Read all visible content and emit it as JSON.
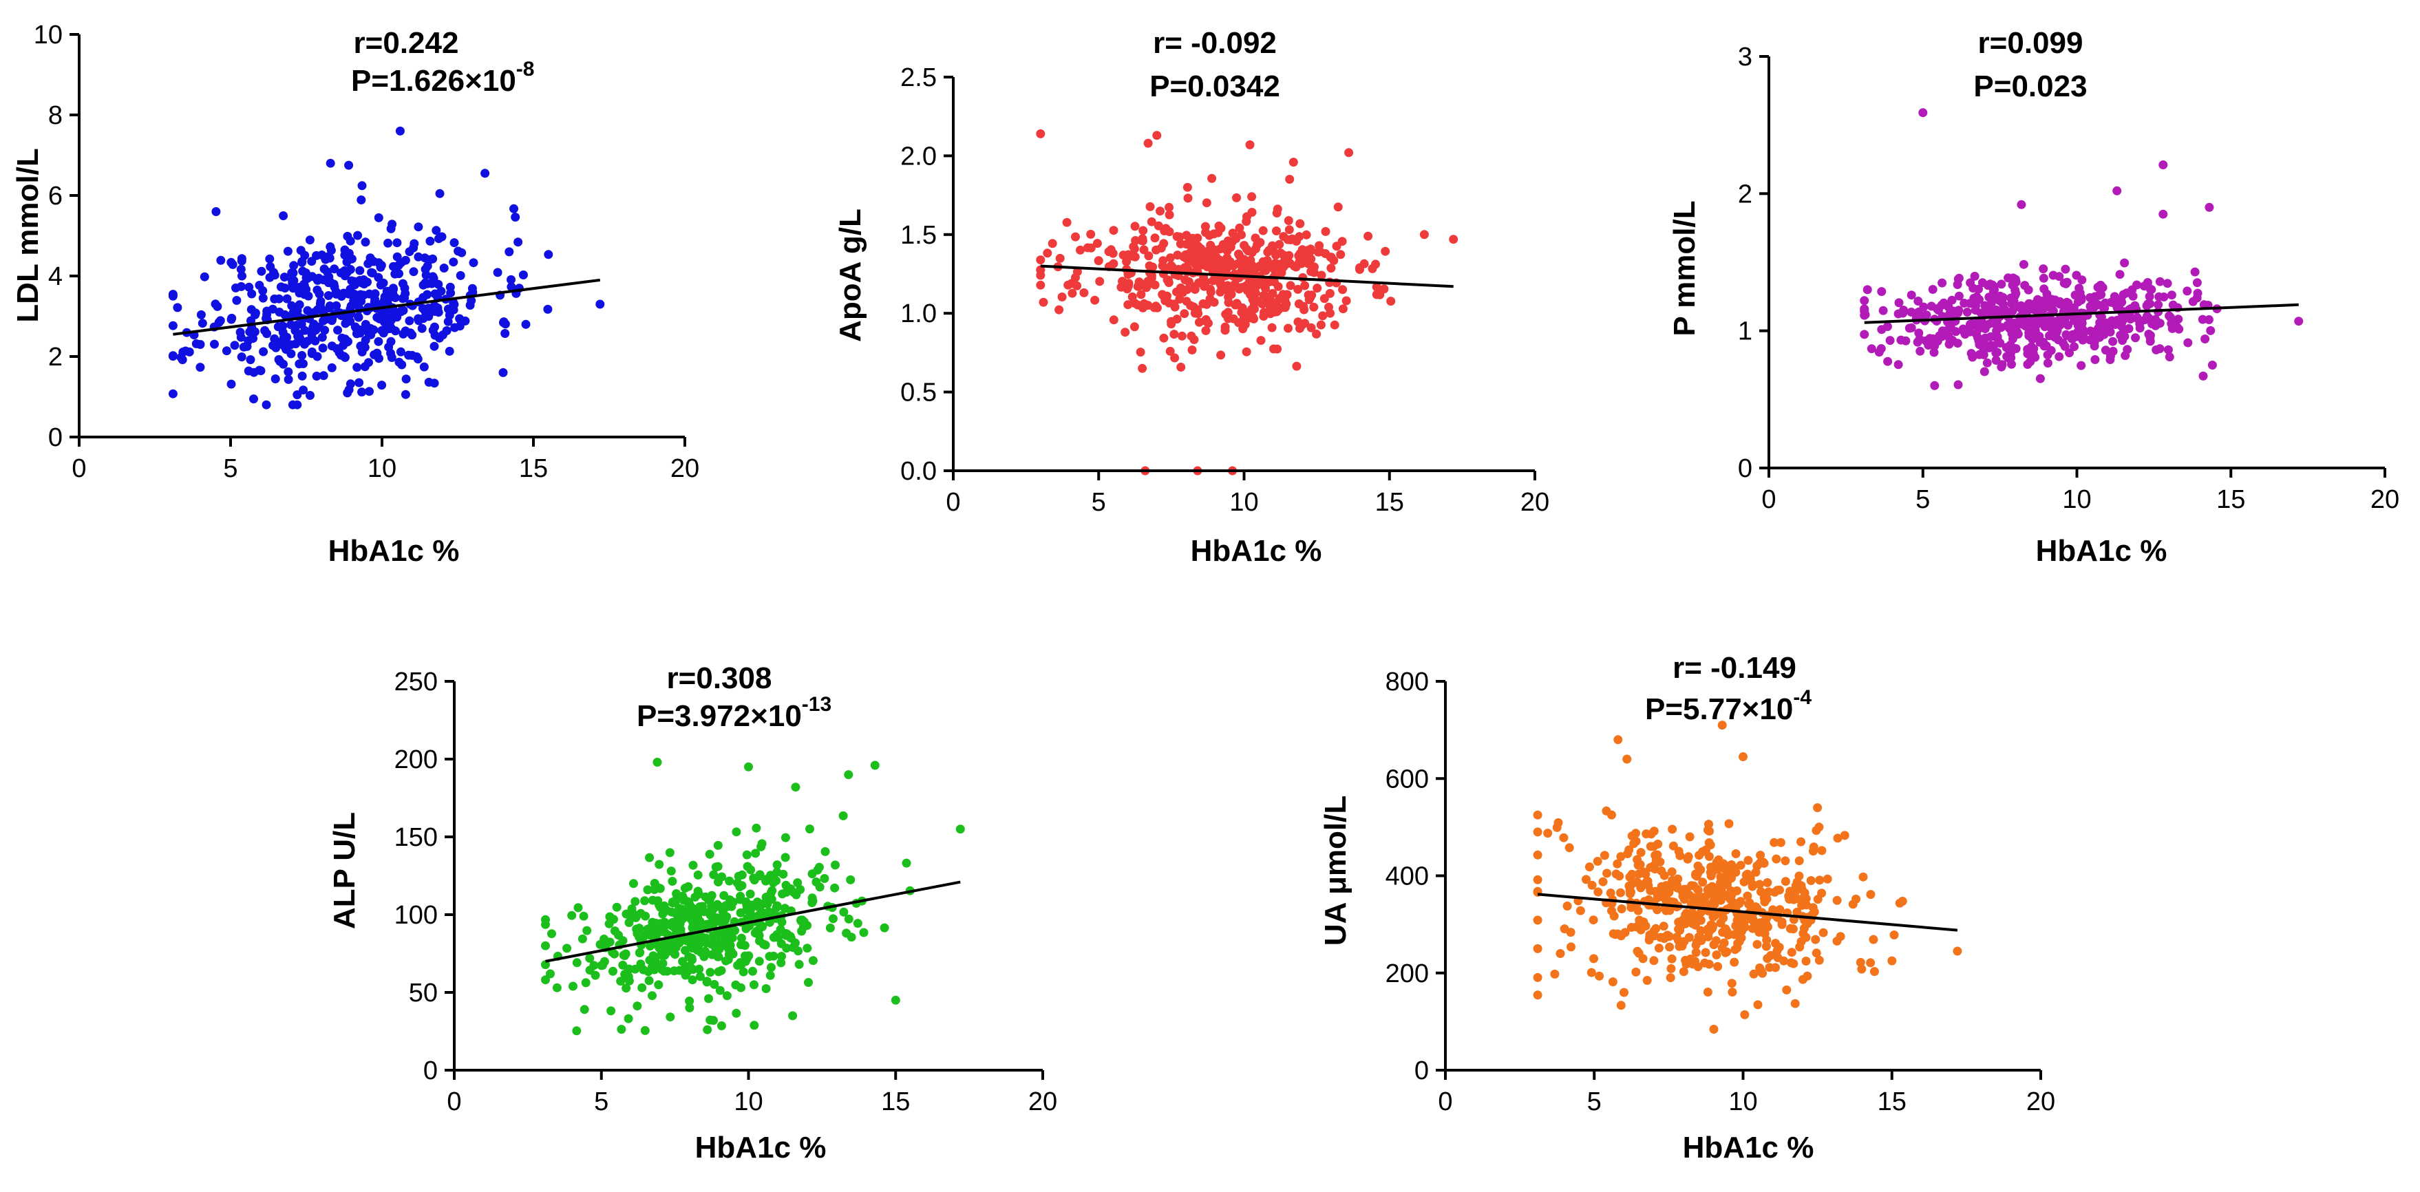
{
  "chart_data": [
    {
      "id": "ldl",
      "type": "scatter",
      "color": "#1010e0",
      "xlabel": "HbA1c %",
      "ylabel": "LDL mmol/L",
      "xlim": [
        0,
        20
      ],
      "ylim": [
        0,
        10
      ],
      "xticks": [
        "0",
        "5",
        "10",
        "15",
        "20"
      ],
      "yticks": [
        "0",
        "2",
        "4",
        "6",
        "8",
        "10"
      ],
      "stat_r": "r=0.242",
      "stat_p_base": "P=1.626×10",
      "stat_p_exp": "-8",
      "trend": {
        "x": [
          3.1,
          17.2
        ],
        "y": [
          2.55,
          3.9
        ]
      },
      "n_points": 520,
      "x_range": [
        3.1,
        17.2
      ],
      "center": {
        "x": 8.8,
        "y": 3.25
      },
      "spread": {
        "x": 2.4,
        "y": 0.95
      },
      "slope": 0.096,
      "seed": 11,
      "extra_points": [
        [
          10.6,
          7.6
        ],
        [
          8.3,
          6.8
        ],
        [
          8.9,
          6.75
        ],
        [
          13.4,
          6.55
        ],
        [
          14.2,
          4.6
        ],
        [
          17.2,
          3.3
        ],
        [
          3.1,
          3.5
        ],
        [
          4.0,
          2.3
        ],
        [
          14.0,
          1.6
        ],
        [
          7.2,
          1.05
        ]
      ]
    },
    {
      "id": "apoa",
      "type": "scatter",
      "color": "#ee3a3a",
      "xlabel": "HbA1c %",
      "ylabel": "ApoA g/L",
      "xlim": [
        0,
        20
      ],
      "ylim": [
        0,
        2.5
      ],
      "xticks": [
        "0",
        "5",
        "10",
        "15",
        "20"
      ],
      "yticks": [
        "0.0",
        "0.5",
        "1.0",
        "1.5",
        "2.0",
        "2.5"
      ],
      "stat_r": "r= -0.092",
      "stat_p_base": "P=0.0342",
      "stat_p_exp": "",
      "trend": {
        "x": [
          3.0,
          17.2
        ],
        "y": [
          1.3,
          1.17
        ]
      },
      "n_points": 520,
      "x_range": [
        3.0,
        17.2
      ],
      "center": {
        "x": 9.0,
        "y": 1.24
      },
      "spread": {
        "x": 2.4,
        "y": 0.2
      },
      "slope": -0.009,
      "seed": 23,
      "extra_points": [
        [
          3.0,
          2.14
        ],
        [
          6.7,
          2.08
        ],
        [
          7.0,
          2.13
        ],
        [
          10.2,
          2.07
        ],
        [
          13.6,
          2.02
        ],
        [
          11.7,
          1.96
        ],
        [
          6.5,
          0.65
        ],
        [
          6.6,
          0.0
        ],
        [
          8.4,
          0.0
        ],
        [
          9.6,
          0.0
        ],
        [
          3.1,
          1.07
        ],
        [
          17.2,
          1.47
        ],
        [
          16.2,
          1.5
        ]
      ]
    },
    {
      "id": "p",
      "type": "scatter",
      "color": "#b21bb8",
      "xlabel": "HbA1c %",
      "ylabel": "P mmol/L",
      "xlim": [
        0,
        20
      ],
      "ylim": [
        0,
        3
      ],
      "xticks": [
        "0",
        "5",
        "10",
        "15",
        "20"
      ],
      "yticks": [
        "0",
        "1",
        "2",
        "3"
      ],
      "stat_r": "r=0.099",
      "stat_p_base": "P=0.023",
      "stat_p_exp": "",
      "trend": {
        "x": [
          3.1,
          17.2
        ],
        "y": [
          1.06,
          1.19
        ]
      },
      "n_points": 520,
      "x_range": [
        3.1,
        17.2
      ],
      "center": {
        "x": 8.8,
        "y": 1.1
      },
      "spread": {
        "x": 2.4,
        "y": 0.16
      },
      "slope": 0.009,
      "seed": 37,
      "extra_points": [
        [
          5.0,
          2.59
        ],
        [
          12.8,
          2.21
        ],
        [
          11.3,
          2.02
        ],
        [
          14.3,
          1.9
        ],
        [
          12.8,
          1.85
        ],
        [
          8.2,
          1.92
        ],
        [
          3.2,
          1.3
        ],
        [
          3.1,
          1.22
        ],
        [
          17.2,
          1.07
        ],
        [
          14.1,
          0.67
        ],
        [
          14.4,
          0.75
        ]
      ]
    },
    {
      "id": "alp",
      "type": "scatter",
      "color": "#1bbe1b",
      "xlabel": "HbA1c %",
      "ylabel": "ALP U/L",
      "xlim": [
        0,
        20
      ],
      "ylim": [
        0,
        250
      ],
      "xticks": [
        "0",
        "5",
        "10",
        "15",
        "20"
      ],
      "yticks": [
        "0",
        "50",
        "100",
        "150",
        "200",
        "250"
      ],
      "stat_r": "r=0.308",
      "stat_p_base": "P=3.972×10",
      "stat_p_exp": "-13",
      "trend": {
        "x": [
          3.1,
          17.2
        ],
        "y": [
          70,
          121
        ]
      },
      "n_points": 520,
      "x_range": [
        3.1,
        17.2
      ],
      "center": {
        "x": 8.8,
        "y": 90
      },
      "spread": {
        "x": 2.4,
        "y": 22
      },
      "slope": 3.6,
      "seed": 53,
      "extra_points": [
        [
          6.9,
          198
        ],
        [
          10.0,
          195
        ],
        [
          14.3,
          196
        ],
        [
          13.4,
          190
        ],
        [
          11.6,
          182
        ],
        [
          17.2,
          155
        ],
        [
          3.1,
          80
        ],
        [
          15.0,
          45
        ],
        [
          11.5,
          35
        ],
        [
          8.6,
          26
        ]
      ]
    },
    {
      "id": "ua",
      "type": "scatter",
      "color": "#f2731a",
      "xlabel": "HbA1c %",
      "ylabel": "UA μmol/L",
      "xlim": [
        0,
        20
      ],
      "ylim": [
        0,
        800
      ],
      "xticks": [
        "0",
        "5",
        "10",
        "15",
        "20"
      ],
      "yticks": [
        "0",
        "200",
        "400",
        "600",
        "800"
      ],
      "stat_r": "r= -0.149",
      "stat_p_base": "P=5.77×10",
      "stat_p_exp": "-4",
      "trend": {
        "x": [
          3.1,
          17.2
        ],
        "y": [
          362,
          288
        ]
      },
      "n_points": 520,
      "x_range": [
        3.1,
        17.2
      ],
      "center": {
        "x": 8.8,
        "y": 332
      },
      "spread": {
        "x": 2.4,
        "y": 78
      },
      "slope": -5.2,
      "seed": 71,
      "extra_points": [
        [
          5.8,
          680
        ],
        [
          6.1,
          640
        ],
        [
          10.0,
          645
        ],
        [
          9.3,
          710
        ],
        [
          3.1,
          490
        ],
        [
          3.1,
          250
        ],
        [
          12.5,
          540
        ],
        [
          17.2,
          245
        ],
        [
          6.0,
          160
        ],
        [
          15.0,
          225
        ]
      ]
    }
  ]
}
